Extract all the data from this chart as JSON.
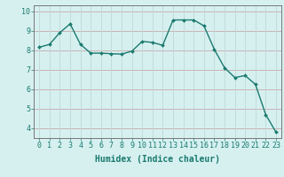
{
  "x": [
    0,
    1,
    2,
    3,
    4,
    5,
    6,
    7,
    8,
    9,
    10,
    11,
    12,
    13,
    14,
    15,
    16,
    17,
    18,
    19,
    20,
    21,
    22,
    23
  ],
  "y": [
    8.15,
    8.3,
    8.9,
    9.35,
    8.3,
    7.85,
    7.85,
    7.82,
    7.8,
    7.95,
    8.45,
    8.4,
    8.25,
    9.55,
    9.55,
    9.55,
    9.25,
    8.05,
    7.1,
    6.6,
    6.7,
    6.25,
    4.7,
    3.8
  ],
  "line_color": "#1a7a6e",
  "marker": "D",
  "marker_size": 2.0,
  "linewidth": 1.0,
  "bg_color": "#d6f0f0",
  "grid_color_major": "#c8a8a8",
  "grid_color_minor": "#c0d8d8",
  "xlabel": "Humidex (Indice chaleur)",
  "xlabel_fontsize": 7,
  "tick_fontsize": 6,
  "xlim": [
    -0.5,
    23.5
  ],
  "ylim": [
    3.5,
    10.3
  ],
  "yticks": [
    4,
    5,
    6,
    7,
    8,
    9,
    10
  ],
  "xticks": [
    0,
    1,
    2,
    3,
    4,
    5,
    6,
    7,
    8,
    9,
    10,
    11,
    12,
    13,
    14,
    15,
    16,
    17,
    18,
    19,
    20,
    21,
    22,
    23
  ]
}
